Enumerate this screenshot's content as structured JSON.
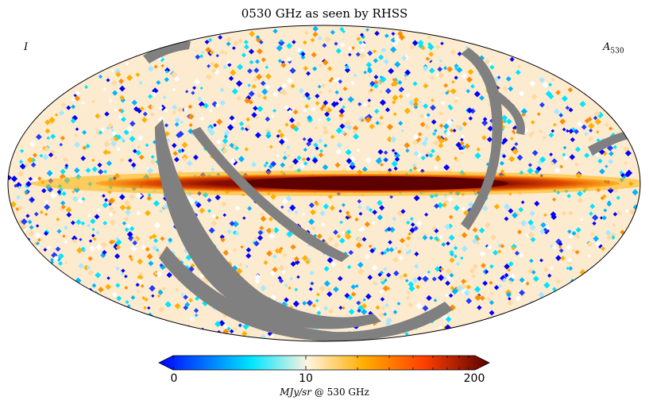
{
  "title": "0530 GHz as seen by RHSS",
  "corner_left": "I",
  "corner_right_main": "A",
  "corner_right_sub": "530",
  "colorbar": {
    "min_label": "0",
    "mid_label": "10",
    "max_label": "200",
    "units_italic": "MJy/sr",
    "units_rest": " @ 530 GHz",
    "colors": [
      "#0000ff",
      "#00e5ff",
      "#fff4e0",
      "#ffae00",
      "#ff4000",
      "#5a0000"
    ]
  },
  "map": {
    "projection": "mollweide",
    "mask_color": "#808080",
    "galactic_plane_color": "#7a0000"
  }
}
